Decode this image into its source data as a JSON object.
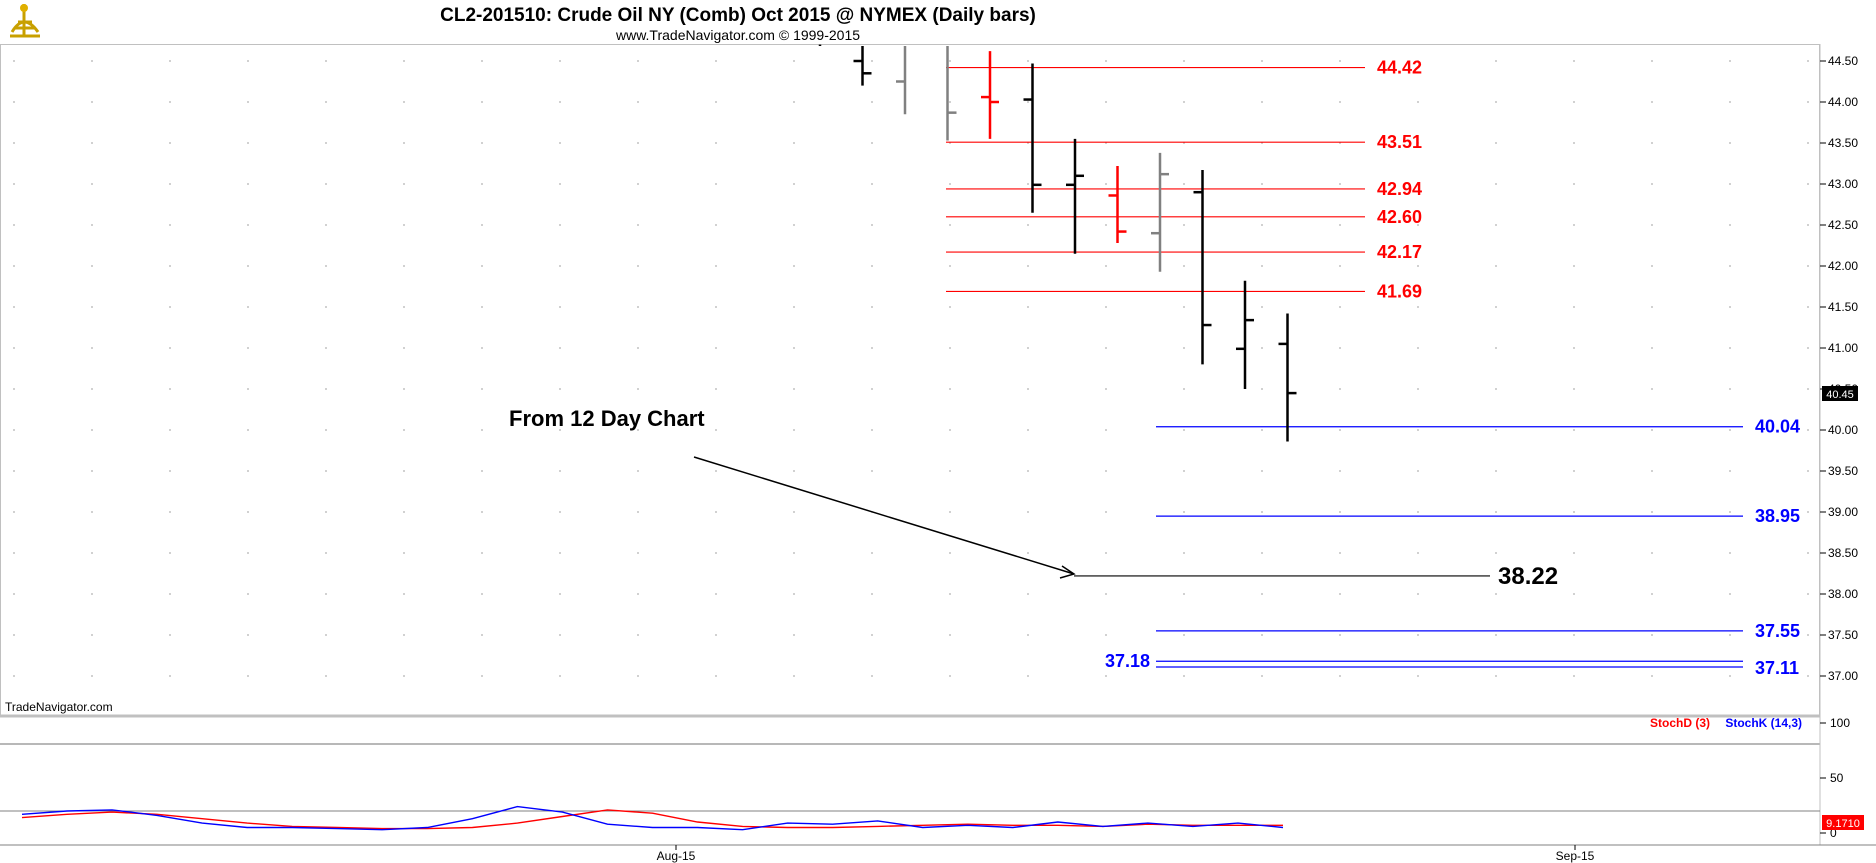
{
  "header": {
    "title": "CL2-201510:  Crude Oil NY (Comb) Oct 2015 @ NYMEX  (Daily bars)",
    "subtitle": "www.TradeNavigator.com © 1999-2015",
    "logo_icon": "sextant-logo-icon"
  },
  "watermark": "TradeNavigator.com",
  "price_badge": "40.45",
  "stoch_badge": "9.1710",
  "annotation": {
    "text": "From 12 Day Chart"
  },
  "colors": {
    "resistance": "#ff0000",
    "support": "#0000ff",
    "black": "#000000",
    "gray": "#808080",
    "stochD": "#ff0000",
    "stochK": "#0000ff",
    "frame": "#c0c0c0"
  },
  "chart_data": [
    {
      "type": "ohlc",
      "title": "CL2-201510:  Crude Oil NY (Comb) Oct 2015 @ NYMEX  (Daily bars)",
      "ylim": [
        36.7,
        44.85
      ],
      "y_ticks": [
        "44.50",
        "44.00",
        "43.50",
        "43.00",
        "42.50",
        "42.00",
        "41.50",
        "41.00",
        "40.50",
        "40.00",
        "39.50",
        "39.00",
        "38.50",
        "38.00",
        "37.50",
        "37.00"
      ],
      "x_ticks": [
        "Aug-15",
        "Sep-15"
      ],
      "grid": true,
      "bars": [
        {
          "date": "2015-08-18",
          "open": 44.9,
          "high": 45.1,
          "low": 44.7,
          "close": 44.7,
          "color": "black"
        },
        {
          "date": "2015-08-19",
          "open": 44.5,
          "high": 45.0,
          "low": 44.2,
          "close": 44.35,
          "color": "black"
        },
        {
          "date": "2015-08-20",
          "open": 44.25,
          "high": 45.0,
          "low": 43.85,
          "close": 44.75,
          "color": "gray"
        },
        {
          "date": "2015-08-21",
          "open": 44.9,
          "high": 45.0,
          "low": 43.53,
          "close": 43.87,
          "color": "gray"
        },
        {
          "date": "2015-08-24",
          "open": 44.06,
          "high": 44.62,
          "low": 43.55,
          "close": 44.0,
          "color": "red"
        },
        {
          "date": "2015-08-25",
          "open": 44.03,
          "high": 44.47,
          "low": 42.65,
          "close": 42.99,
          "color": "black"
        },
        {
          "date": "2015-08-26",
          "open": 42.99,
          "high": 43.55,
          "low": 42.15,
          "close": 43.1,
          "color": "black"
        },
        {
          "date": "2015-08-27",
          "open": 42.86,
          "high": 43.22,
          "low": 42.28,
          "close": 42.42,
          "color": "red"
        },
        {
          "date": "2015-08-28",
          "open": 42.4,
          "high": 43.38,
          "low": 41.93,
          "close": 43.12,
          "color": "gray"
        },
        {
          "date": "2015-08-31",
          "open": 42.9,
          "high": 43.17,
          "low": 40.8,
          "close": 41.28,
          "color": "black"
        },
        {
          "date": "2015-09-01",
          "open": 40.99,
          "high": 41.82,
          "low": 40.5,
          "close": 41.34,
          "color": "black"
        },
        {
          "date": "2015-09-02",
          "open": 41.05,
          "high": 41.42,
          "low": 39.86,
          "close": 40.45,
          "color": "black"
        }
      ],
      "levels": [
        {
          "value": 44.42,
          "label": "44.42",
          "color": "red"
        },
        {
          "value": 43.51,
          "label": "43.51",
          "color": "red"
        },
        {
          "value": 42.94,
          "label": "42.94",
          "color": "red"
        },
        {
          "value": 42.6,
          "label": "42.60",
          "color": "red"
        },
        {
          "value": 42.17,
          "label": "42.17",
          "color": "red"
        },
        {
          "value": 41.69,
          "label": "41.69",
          "color": "red"
        },
        {
          "value": 40.04,
          "label": "40.04",
          "color": "blue"
        },
        {
          "value": 38.95,
          "label": "38.95",
          "color": "blue"
        },
        {
          "value": 38.22,
          "label": "38.22",
          "color": "black"
        },
        {
          "value": 37.55,
          "label": "37.55",
          "color": "blue"
        },
        {
          "value": 37.18,
          "label": "37.18",
          "color": "blue"
        },
        {
          "value": 37.11,
          "label": "37.11",
          "color": "blue"
        }
      ],
      "last_price": 40.45
    },
    {
      "type": "line",
      "ylim": [
        0,
        100
      ],
      "y_ticks": [
        "100",
        "50",
        "0"
      ],
      "series": [
        {
          "name": "StochD (3)",
          "color": "red",
          "values": [
            14,
            17,
            19,
            17,
            13,
            9,
            6,
            5,
            4,
            4,
            5,
            9,
            15,
            21,
            18,
            10,
            6,
            5,
            5,
            6,
            7,
            8,
            7,
            7,
            6,
            8,
            7,
            7,
            7
          ]
        },
        {
          "name": "StochK (14,3)",
          "color": "blue",
          "values": [
            17,
            20,
            21,
            16,
            9,
            5,
            5,
            4,
            3,
            5,
            13,
            24,
            19,
            8,
            5,
            5,
            3,
            9,
            8,
            11,
            5,
            7,
            5,
            10,
            6,
            9,
            6,
            9,
            5
          ]
        }
      ]
    }
  ],
  "legend": {
    "stochD": "StochD (3)",
    "stochK": "StochK (14,3)"
  }
}
